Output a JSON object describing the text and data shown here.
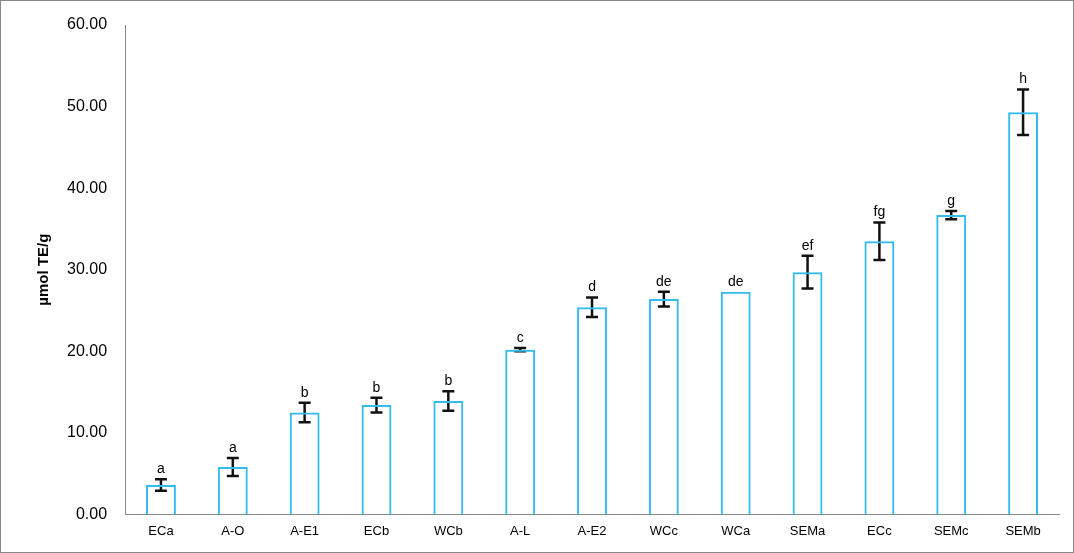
{
  "chart_data": {
    "type": "bar",
    "ylabel": "µmol TE/g",
    "categories": [
      "ECa",
      "A-O",
      "A-E1",
      "ECb",
      "WCb",
      "A-L",
      "A-E2",
      "WCc",
      "WCa",
      "SEMa",
      "ECc",
      "SEMc",
      "SEMb"
    ],
    "values": [
      3.6,
      5.8,
      12.5,
      13.4,
      13.9,
      20.2,
      25.4,
      26.4,
      27.3,
      29.7,
      33.5,
      36.7,
      49.3
    ],
    "errors": [
      0.7,
      1.1,
      1.2,
      0.9,
      1.2,
      0.2,
      1.2,
      0.9,
      null,
      2.0,
      2.3,
      0.5,
      2.8
    ],
    "color": "#33bbee",
    "ylim": [
      0,
      60
    ],
    "yticks": [
      {
        "value": 0,
        "label": "0.00"
      },
      {
        "value": 10,
        "label": "10.00"
      },
      {
        "value": 20,
        "label": "20.00"
      },
      {
        "value": 30,
        "label": "30.00"
      },
      {
        "value": 40,
        "label": "40.00"
      },
      {
        "value": 50,
        "label": "50.00"
      },
      {
        "value": 60,
        "label": "60.00"
      }
    ],
    "annotations": [
      {
        "text": "a",
        "x": "ECa",
        "y": 4.3
      },
      {
        "text": "a",
        "x": "A-O",
        "y": 6.9
      },
      {
        "text": "b",
        "x": "A-E1",
        "y": 13.7
      },
      {
        "text": "b",
        "x": "ECb",
        "y": 14.3
      },
      {
        "text": "b",
        "x": "WCb",
        "y": 15.1
      },
      {
        "text": "c",
        "x": "A-L",
        "y": 20.4
      },
      {
        "text": "d",
        "x": "A-E2",
        "y": 26.6
      },
      {
        "text": "de",
        "x": "WCc",
        "y": 27.3
      },
      {
        "text": "de",
        "x": "WCa",
        "y": 27.3
      },
      {
        "text": "ef",
        "x": "SEMa",
        "y": 31.7
      },
      {
        "text": "fg",
        "x": "ECc",
        "y": 35.8
      },
      {
        "text": "g",
        "x": "SEMc",
        "y": 37.2
      },
      {
        "text": "h",
        "x": "SEMb",
        "y": 52.1
      }
    ],
    "grid": false,
    "legend": false
  }
}
